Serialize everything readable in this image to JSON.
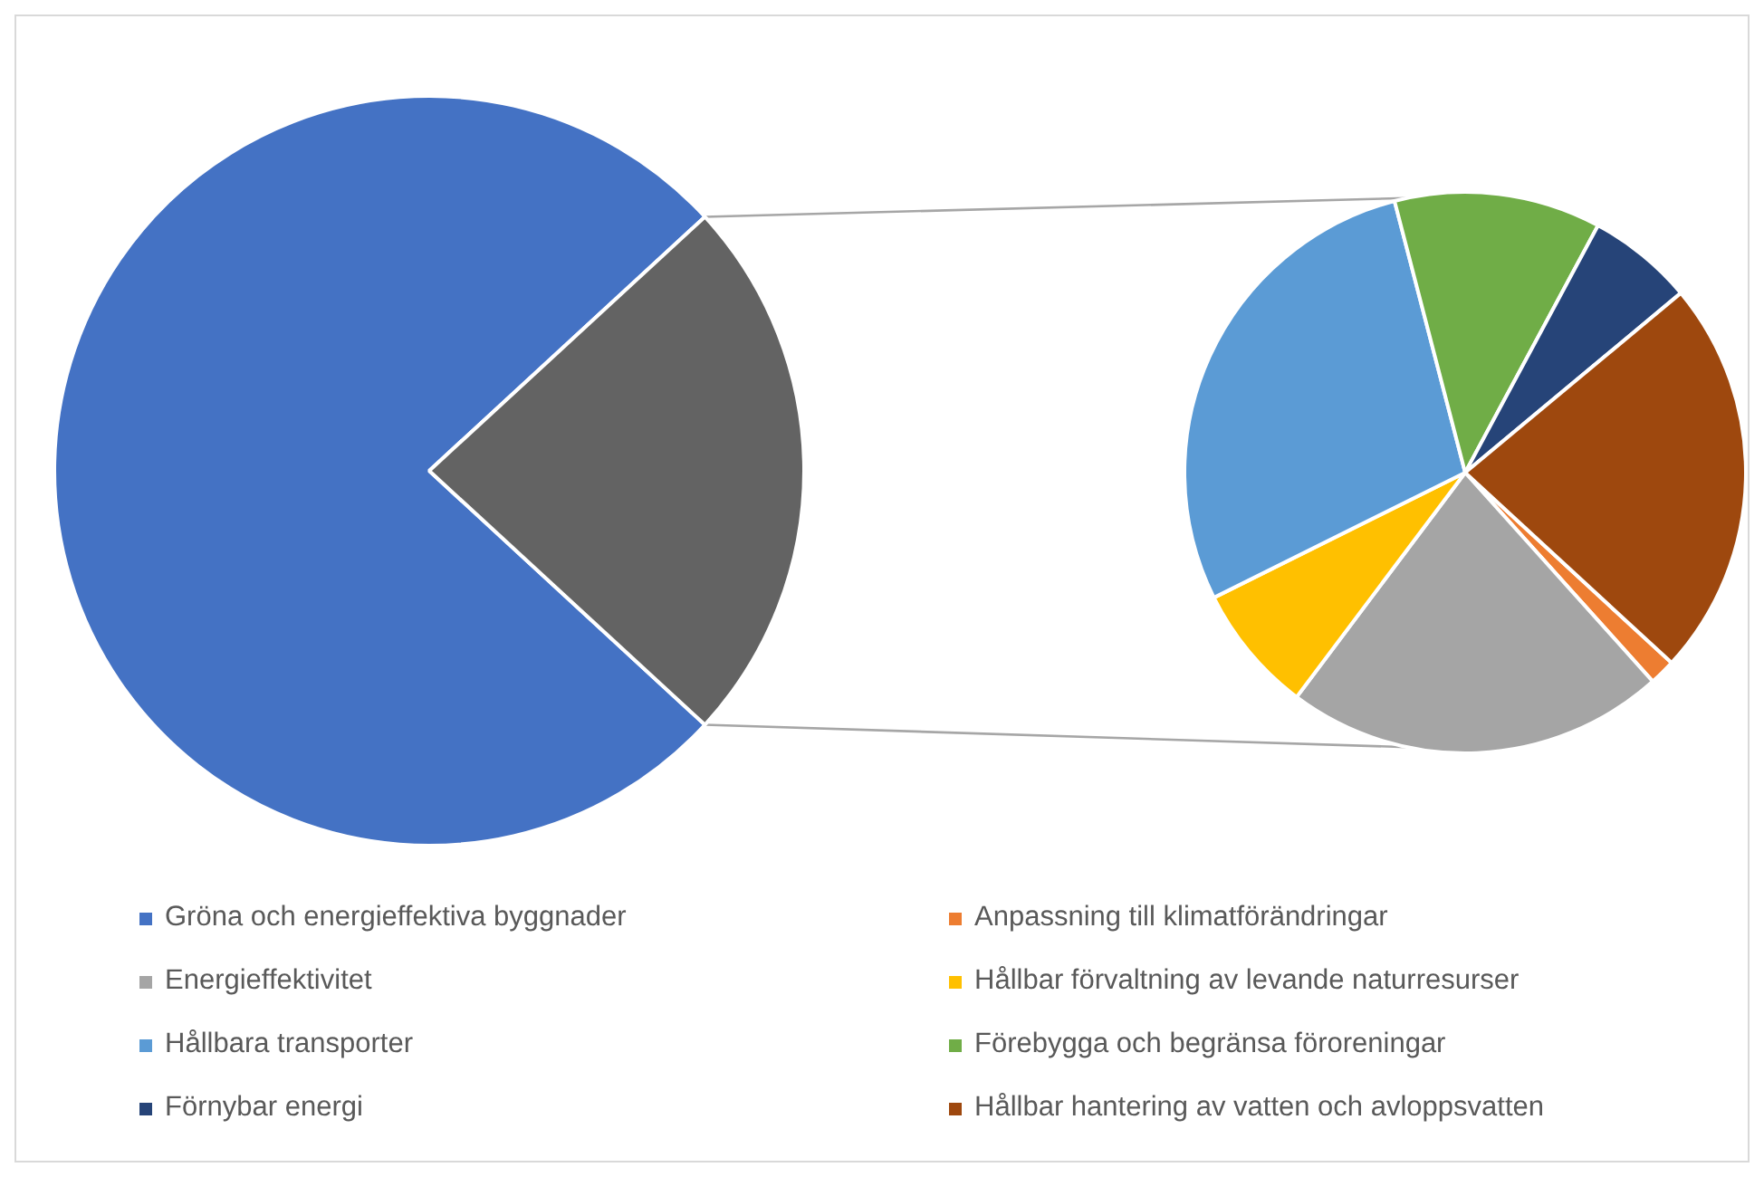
{
  "chart_data": [
    {
      "type": "pie",
      "categories": [
        "Gröna och energieffektiva byggnader",
        null
      ],
      "values": [
        76.3,
        23.7
      ],
      "colors": [
        "#4472c4",
        "#636363"
      ],
      "legend": "bottom"
    },
    {
      "type": "pie",
      "categories": [
        "Anpassning till klimatförändringar",
        "Energieffektivitet",
        "Hållbar förvaltning av levande naturresurser",
        "Hållbara transporter",
        "Förebygga och begränsa föroreningar",
        "Förnybar energi",
        "Hållbar hantering av vatten och avloppsvatten"
      ],
      "values": [
        1.5,
        21.9,
        7.4,
        28.3,
        11.9,
        6.1,
        22.9
      ],
      "colors": [
        "#ed7d31",
        "#a5a5a5",
        "#ffc000",
        "#5b9bd5",
        "#70ad47",
        "#264478",
        "#9e480e"
      ],
      "legend": "bottom"
    }
  ]
}
